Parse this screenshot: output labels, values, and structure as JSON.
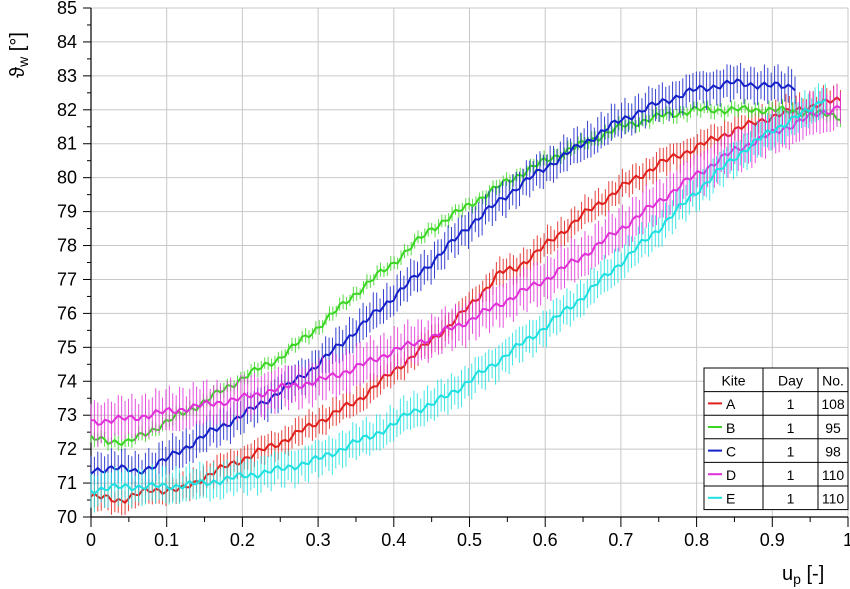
{
  "chart_data": {
    "type": "line",
    "title": "",
    "xlabel": "u",
    "xlabel_sub": "p",
    "xlabel_unit": " [-]",
    "ylabel": "ϑ",
    "ylabel_sub": "w",
    "ylabel_unit": " [°]",
    "xlim": [
      0,
      1
    ],
    "ylim": [
      70,
      85
    ],
    "x_ticks": [
      0,
      0.1,
      0.2,
      0.3,
      0.4,
      0.5,
      0.6,
      0.7,
      0.8,
      0.9,
      1
    ],
    "x_tick_labels": [
      "0",
      "0.1",
      "0.2",
      "0.3",
      "0.4",
      "0.5",
      "0.6",
      "0.7",
      "0.8",
      "0.9",
      "1"
    ],
    "y_ticks": [
      70,
      71,
      72,
      73,
      74,
      75,
      76,
      77,
      78,
      79,
      80,
      81,
      82,
      83,
      84,
      85
    ],
    "y_tick_labels": [
      "70",
      "71",
      "72",
      "73",
      "74",
      "75",
      "76",
      "77",
      "78",
      "79",
      "80",
      "81",
      "82",
      "83",
      "84",
      "85"
    ],
    "grid": true,
    "error_bars": true,
    "legend": {
      "placement": "bottom-right",
      "headers": [
        "Kite",
        "Day",
        "No."
      ],
      "rows": [
        {
          "kite": "A",
          "day": "1",
          "no": "108"
        },
        {
          "kite": "B",
          "day": "1",
          "no": "95"
        },
        {
          "kite": "C",
          "day": "1",
          "no": "98"
        },
        {
          "kite": "D",
          "day": "1",
          "no": "110"
        },
        {
          "kite": "E",
          "day": "1",
          "no": "110"
        }
      ]
    },
    "series": [
      {
        "name": "A",
        "color": "#e0201c",
        "err": 0.4,
        "points": [
          [
            0,
            70.6
          ],
          [
            0.04,
            70.5
          ],
          [
            0.08,
            70.8
          ],
          [
            0.12,
            70.8
          ],
          [
            0.16,
            71.3
          ],
          [
            0.2,
            71.7
          ],
          [
            0.25,
            72.2
          ],
          [
            0.3,
            72.8
          ],
          [
            0.35,
            73.4
          ],
          [
            0.4,
            74.3
          ],
          [
            0.45,
            75.2
          ],
          [
            0.5,
            76.2
          ],
          [
            0.54,
            77.2
          ],
          [
            0.56,
            77.3
          ],
          [
            0.6,
            78.0
          ],
          [
            0.65,
            78.9
          ],
          [
            0.7,
            79.7
          ],
          [
            0.75,
            80.4
          ],
          [
            0.8,
            80.9
          ],
          [
            0.85,
            81.4
          ],
          [
            0.9,
            81.8
          ],
          [
            0.95,
            82.1
          ],
          [
            0.99,
            82.3
          ]
        ]
      },
      {
        "name": "B",
        "color": "#3bd624",
        "err": 0.2,
        "points": [
          [
            0,
            72.3
          ],
          [
            0.05,
            72.2
          ],
          [
            0.1,
            72.8
          ],
          [
            0.15,
            73.4
          ],
          [
            0.2,
            74.1
          ],
          [
            0.25,
            74.7
          ],
          [
            0.3,
            75.6
          ],
          [
            0.35,
            76.6
          ],
          [
            0.4,
            77.5
          ],
          [
            0.45,
            78.5
          ],
          [
            0.5,
            79.2
          ],
          [
            0.55,
            79.9
          ],
          [
            0.6,
            80.5
          ],
          [
            0.65,
            81.0
          ],
          [
            0.7,
            81.5
          ],
          [
            0.75,
            81.8
          ],
          [
            0.8,
            82.0
          ],
          [
            0.85,
            82.0
          ],
          [
            0.9,
            82.0
          ],
          [
            0.95,
            81.9
          ],
          [
            0.99,
            81.8
          ]
        ]
      },
      {
        "name": "C",
        "color": "#1420c8",
        "err": 0.5,
        "points": [
          [
            0,
            71.3
          ],
          [
            0.03,
            71.5
          ],
          [
            0.06,
            71.3
          ],
          [
            0.1,
            71.7
          ],
          [
            0.15,
            72.4
          ],
          [
            0.2,
            73.0
          ],
          [
            0.25,
            73.7
          ],
          [
            0.3,
            74.5
          ],
          [
            0.35,
            75.5
          ],
          [
            0.4,
            76.5
          ],
          [
            0.45,
            77.5
          ],
          [
            0.5,
            78.6
          ],
          [
            0.55,
            79.5
          ],
          [
            0.6,
            80.3
          ],
          [
            0.65,
            81.0
          ],
          [
            0.7,
            81.7
          ],
          [
            0.75,
            82.2
          ],
          [
            0.8,
            82.6
          ],
          [
            0.85,
            82.8
          ],
          [
            0.9,
            82.7
          ],
          [
            0.93,
            82.7
          ]
        ]
      },
      {
        "name": "D",
        "color": "#e030d8",
        "err": 0.6,
        "points": [
          [
            0,
            72.8
          ],
          [
            0.05,
            72.9
          ],
          [
            0.1,
            73.1
          ],
          [
            0.15,
            73.3
          ],
          [
            0.2,
            73.5
          ],
          [
            0.25,
            73.8
          ],
          [
            0.3,
            74.0
          ],
          [
            0.35,
            74.4
          ],
          [
            0.4,
            74.9
          ],
          [
            0.45,
            75.3
          ],
          [
            0.5,
            75.8
          ],
          [
            0.55,
            76.4
          ],
          [
            0.6,
            77.0
          ],
          [
            0.65,
            77.7
          ],
          [
            0.7,
            78.5
          ],
          [
            0.75,
            79.3
          ],
          [
            0.8,
            80.1
          ],
          [
            0.85,
            80.8
          ],
          [
            0.9,
            81.3
          ],
          [
            0.95,
            81.8
          ],
          [
            0.99,
            82.1
          ]
        ]
      },
      {
        "name": "E",
        "color": "#1ee0e0",
        "err": 0.5,
        "points": [
          [
            0,
            70.8
          ],
          [
            0.05,
            70.9
          ],
          [
            0.1,
            70.9
          ],
          [
            0.15,
            71.0
          ],
          [
            0.2,
            71.2
          ],
          [
            0.25,
            71.4
          ],
          [
            0.3,
            71.7
          ],
          [
            0.35,
            72.2
          ],
          [
            0.4,
            72.7
          ],
          [
            0.42,
            73.1
          ],
          [
            0.45,
            73.3
          ],
          [
            0.5,
            74.0
          ],
          [
            0.55,
            74.8
          ],
          [
            0.6,
            75.6
          ],
          [
            0.65,
            76.5
          ],
          [
            0.7,
            77.5
          ],
          [
            0.75,
            78.5
          ],
          [
            0.8,
            79.6
          ],
          [
            0.85,
            80.6
          ],
          [
            0.9,
            81.4
          ],
          [
            0.95,
            82.0
          ],
          [
            0.97,
            82.4
          ]
        ]
      }
    ]
  }
}
